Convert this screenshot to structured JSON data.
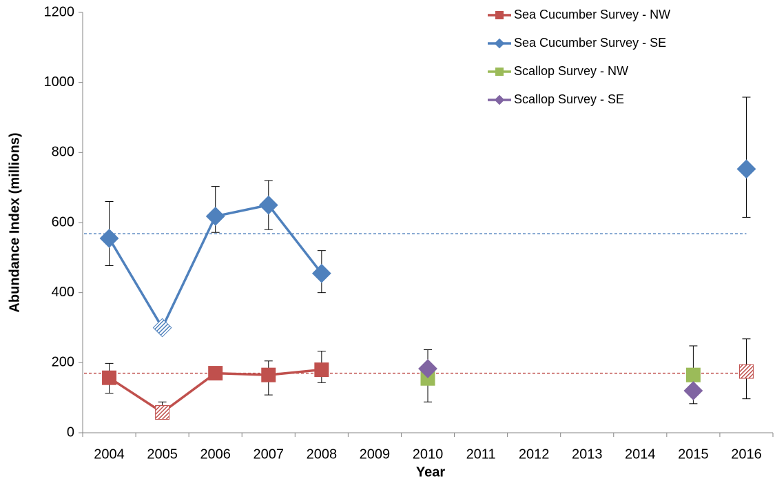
{
  "chart_data": {
    "type": "line",
    "x_label": "Year",
    "y_label": "Abundance Index (millions)",
    "categories": [
      "2004",
      "2005",
      "2006",
      "2007",
      "2008",
      "2009",
      "2010",
      "2011",
      "2012",
      "2013",
      "2014",
      "2015",
      "2016"
    ],
    "ylim": [
      0,
      1200
    ],
    "yticks": [
      0,
      200,
      400,
      600,
      800,
      1000,
      1200
    ],
    "legend": "top-right",
    "series": [
      {
        "name": "Sea Cucumber Survey - NW",
        "color": "#c0504d",
        "marker": "square",
        "line": true,
        "mean": 170,
        "values": [
          157,
          58,
          170,
          165,
          180,
          null,
          null,
          null,
          null,
          null,
          null,
          null,
          175
        ],
        "hatched": [
          false,
          true,
          false,
          false,
          false,
          false,
          false,
          false,
          false,
          false,
          false,
          false,
          true
        ],
        "error_bars": [
          [
            113,
            198
          ],
          [
            50,
            88
          ],
          null,
          [
            108,
            205
          ],
          [
            143,
            233
          ],
          null,
          null,
          null,
          null,
          null,
          null,
          null,
          [
            97,
            268
          ]
        ]
      },
      {
        "name": "Sea Cucumber Survey - SE",
        "color": "#4f81bd",
        "marker": "diamond",
        "line": true,
        "mean": 568,
        "values": [
          555,
          300,
          618,
          650,
          455,
          null,
          null,
          null,
          null,
          null,
          null,
          null,
          753
        ],
        "hatched": [
          false,
          true,
          false,
          false,
          false,
          false,
          false,
          false,
          false,
          false,
          false,
          false,
          false
        ],
        "error_bars": [
          [
            477,
            660
          ],
          null,
          [
            572,
            703
          ],
          [
            580,
            720
          ],
          [
            400,
            520
          ],
          null,
          null,
          null,
          null,
          null,
          null,
          null,
          [
            615,
            958
          ]
        ]
      },
      {
        "name": "Scallop Survey - NW",
        "color": "#9bbb59",
        "marker": "square",
        "line": false,
        "values": [
          null,
          null,
          null,
          null,
          null,
          null,
          155,
          null,
          null,
          null,
          null,
          165,
          null
        ],
        "error_bars": [
          null,
          null,
          null,
          null,
          null,
          null,
          [
            88,
            237
          ],
          null,
          null,
          null,
          null,
          [
            83,
            248
          ],
          null
        ]
      },
      {
        "name": "Scallop Survey - SE",
        "color": "#8064a2",
        "marker": "diamond",
        "line": false,
        "values": [
          null,
          null,
          null,
          null,
          null,
          null,
          183,
          null,
          null,
          null,
          null,
          120,
          null
        ]
      }
    ]
  }
}
